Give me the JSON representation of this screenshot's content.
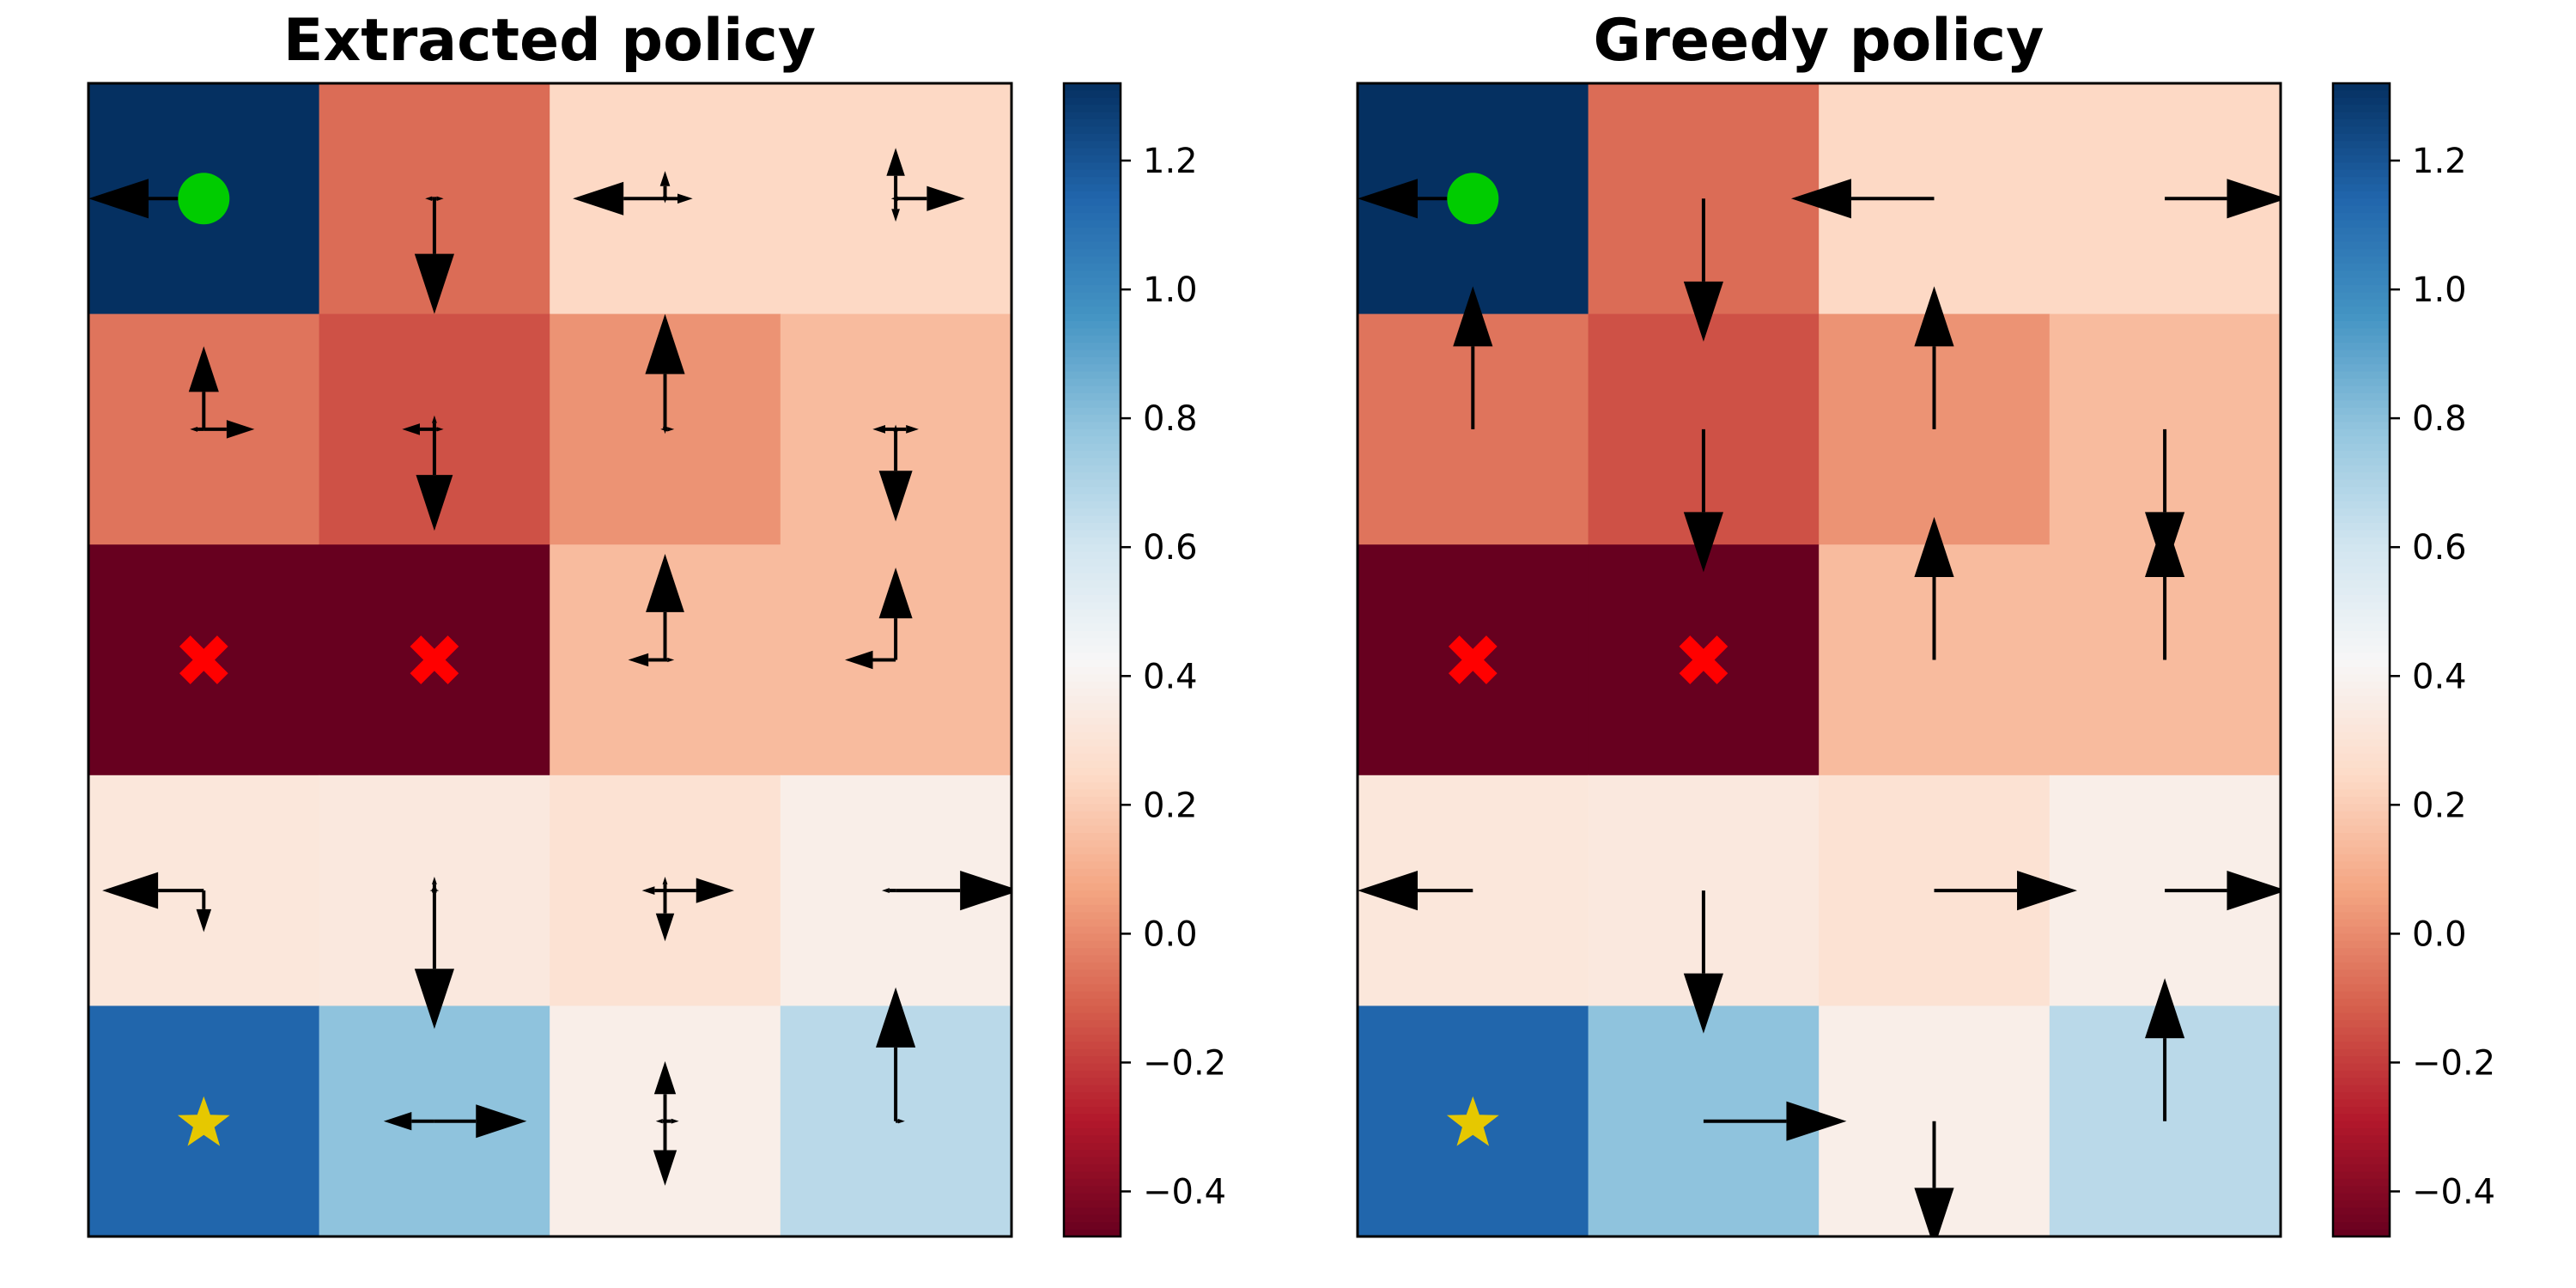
{
  "chart_data": [
    {
      "type": "heatmap",
      "title": "Extracted policy",
      "rows": 5,
      "cols": 4,
      "values": [
        [
          1.32,
          -0.08,
          0.24,
          0.24
        ],
        [
          -0.06,
          -0.15,
          0.02,
          0.14
        ],
        [
          -0.47,
          -0.47,
          0.14,
          0.14
        ],
        [
          0.32,
          0.33,
          0.29,
          0.37
        ],
        [
          1.14,
          0.79,
          0.37,
          0.67
        ]
      ],
      "arrows": [
        [
          {
            "left": 0.5,
            "right": 0,
            "up": 0,
            "down": 0
          },
          {
            "left": 0.04,
            "right": 0.04,
            "up": 0,
            "down": 0.5
          },
          {
            "left": 0.4,
            "right": 0.12,
            "up": 0.12,
            "down": 0.02
          },
          {
            "left": 0.02,
            "right": 0.3,
            "up": 0.22,
            "down": 0.1
          }
        ],
        [
          {
            "left": 0.06,
            "right": 0.22,
            "up": 0.36,
            "down": 0
          },
          {
            "left": 0.14,
            "right": 0.04,
            "up": 0.06,
            "down": 0.44
          },
          {
            "left": 0.02,
            "right": 0.04,
            "up": 0.5,
            "down": 0.02
          },
          {
            "left": 0.1,
            "right": 0.1,
            "up": 0.02,
            "down": 0.4
          }
        ],
        [
          {
            "left": 0,
            "right": 0,
            "up": 0,
            "down": 0
          },
          {
            "left": 0,
            "right": 0,
            "up": 0,
            "down": 0
          },
          {
            "left": 0.16,
            "right": 0.04,
            "up": 0.46,
            "down": 0
          },
          {
            "left": 0.22,
            "right": 0,
            "up": 0.4,
            "down": 0
          }
        ],
        [
          {
            "left": 0.44,
            "right": 0,
            "up": 0,
            "down": 0.18
          },
          {
            "left": 0.02,
            "right": 0.02,
            "up": 0.06,
            "down": 0.6
          },
          {
            "left": 0.1,
            "right": 0.3,
            "up": 0.06,
            "down": 0.22
          },
          {
            "left": 0.06,
            "right": 0.54,
            "up": 0,
            "down": 0
          }
        ],
        [
          {
            "left": 0,
            "right": 0,
            "up": 0,
            "down": 0
          },
          {
            "left": 0.22,
            "right": 0.4,
            "up": 0,
            "down": 0
          },
          {
            "left": 0.04,
            "right": 0.06,
            "up": 0.26,
            "down": 0.28
          },
          {
            "left": 0,
            "right": 0.04,
            "up": 0.58,
            "down": 0
          }
        ]
      ],
      "markers": [
        {
          "row": 0,
          "col": 0,
          "shape": "circle",
          "color": "#00cc00"
        },
        {
          "row": 2,
          "col": 0,
          "shape": "x",
          "color": "#ff0000"
        },
        {
          "row": 2,
          "col": 1,
          "shape": "x",
          "color": "#ff0000"
        },
        {
          "row": 4,
          "col": 0,
          "shape": "star",
          "color": "#e6c800"
        }
      ],
      "colorbar": {
        "colormap": "RdBu",
        "vmin": -0.47,
        "vmax": 1.32,
        "ticks": [
          -0.4,
          -0.2,
          0.0,
          0.2,
          0.4,
          0.6,
          0.8,
          1.0,
          1.2
        ],
        "tick_labels": [
          "−0.4",
          "−0.2",
          "0.0",
          "0.2",
          "0.4",
          "0.6",
          "0.8",
          "1.0",
          "1.2"
        ]
      }
    },
    {
      "type": "heatmap",
      "title": "Greedy policy",
      "rows": 5,
      "cols": 4,
      "values": [
        [
          1.32,
          -0.08,
          0.24,
          0.24
        ],
        [
          -0.06,
          -0.15,
          0.02,
          0.14
        ],
        [
          -0.47,
          -0.47,
          0.14,
          0.14
        ],
        [
          0.32,
          0.33,
          0.29,
          0.37
        ],
        [
          1.14,
          0.79,
          0.37,
          0.67
        ]
      ],
      "arrows": [
        [
          {
            "left": 0.5,
            "right": 0,
            "up": 0,
            "down": 0
          },
          {
            "left": 0,
            "right": 0,
            "up": 0,
            "down": 0.62
          },
          {
            "left": 0.62,
            "right": 0,
            "up": 0,
            "down": 0
          },
          {
            "left": 0,
            "right": 0.53,
            "up": 0,
            "down": 0
          }
        ],
        [
          {
            "left": 0,
            "right": 0,
            "up": 0.62,
            "down": 0
          },
          {
            "left": 0,
            "right": 0,
            "up": 0,
            "down": 0.62
          },
          {
            "left": 0,
            "right": 0,
            "up": 0.62,
            "down": 0
          },
          {
            "left": 0,
            "right": 0,
            "up": 0,
            "down": 0.62
          }
        ],
        [
          {
            "left": 0,
            "right": 0,
            "up": 0,
            "down": 0
          },
          {
            "left": 0,
            "right": 0,
            "up": 0,
            "down": 0
          },
          {
            "left": 0,
            "right": 0,
            "up": 0.62,
            "down": 0
          },
          {
            "left": 0,
            "right": 0,
            "up": 0.62,
            "down": 0
          }
        ],
        [
          {
            "left": 0.5,
            "right": 0,
            "up": 0,
            "down": 0
          },
          {
            "left": 0,
            "right": 0,
            "up": 0,
            "down": 0.62
          },
          {
            "left": 0,
            "right": 0.62,
            "up": 0,
            "down": 0
          },
          {
            "left": 0,
            "right": 0.53,
            "up": 0,
            "down": 0
          }
        ],
        [
          {
            "left": 0,
            "right": 0,
            "up": 0,
            "down": 0
          },
          {
            "left": 0,
            "right": 0.62,
            "up": 0,
            "down": 0
          },
          {
            "left": 0,
            "right": 0,
            "up": 0,
            "down": 0.55
          },
          {
            "left": 0,
            "right": 0,
            "up": 0.62,
            "down": 0
          }
        ]
      ],
      "markers": [
        {
          "row": 0,
          "col": 0,
          "shape": "circle",
          "color": "#00cc00"
        },
        {
          "row": 2,
          "col": 0,
          "shape": "x",
          "color": "#ff0000"
        },
        {
          "row": 2,
          "col": 1,
          "shape": "x",
          "color": "#ff0000"
        },
        {
          "row": 4,
          "col": 0,
          "shape": "star",
          "color": "#e6c800"
        }
      ],
      "colorbar": {
        "colormap": "RdBu",
        "vmin": -0.47,
        "vmax": 1.32,
        "ticks": [
          -0.4,
          -0.2,
          0.0,
          0.2,
          0.4,
          0.6,
          0.8,
          1.0,
          1.2
        ],
        "tick_labels": [
          "−0.4",
          "−0.2",
          "0.0",
          "0.2",
          "0.4",
          "0.6",
          "0.8",
          "1.0",
          "1.2"
        ]
      }
    }
  ]
}
